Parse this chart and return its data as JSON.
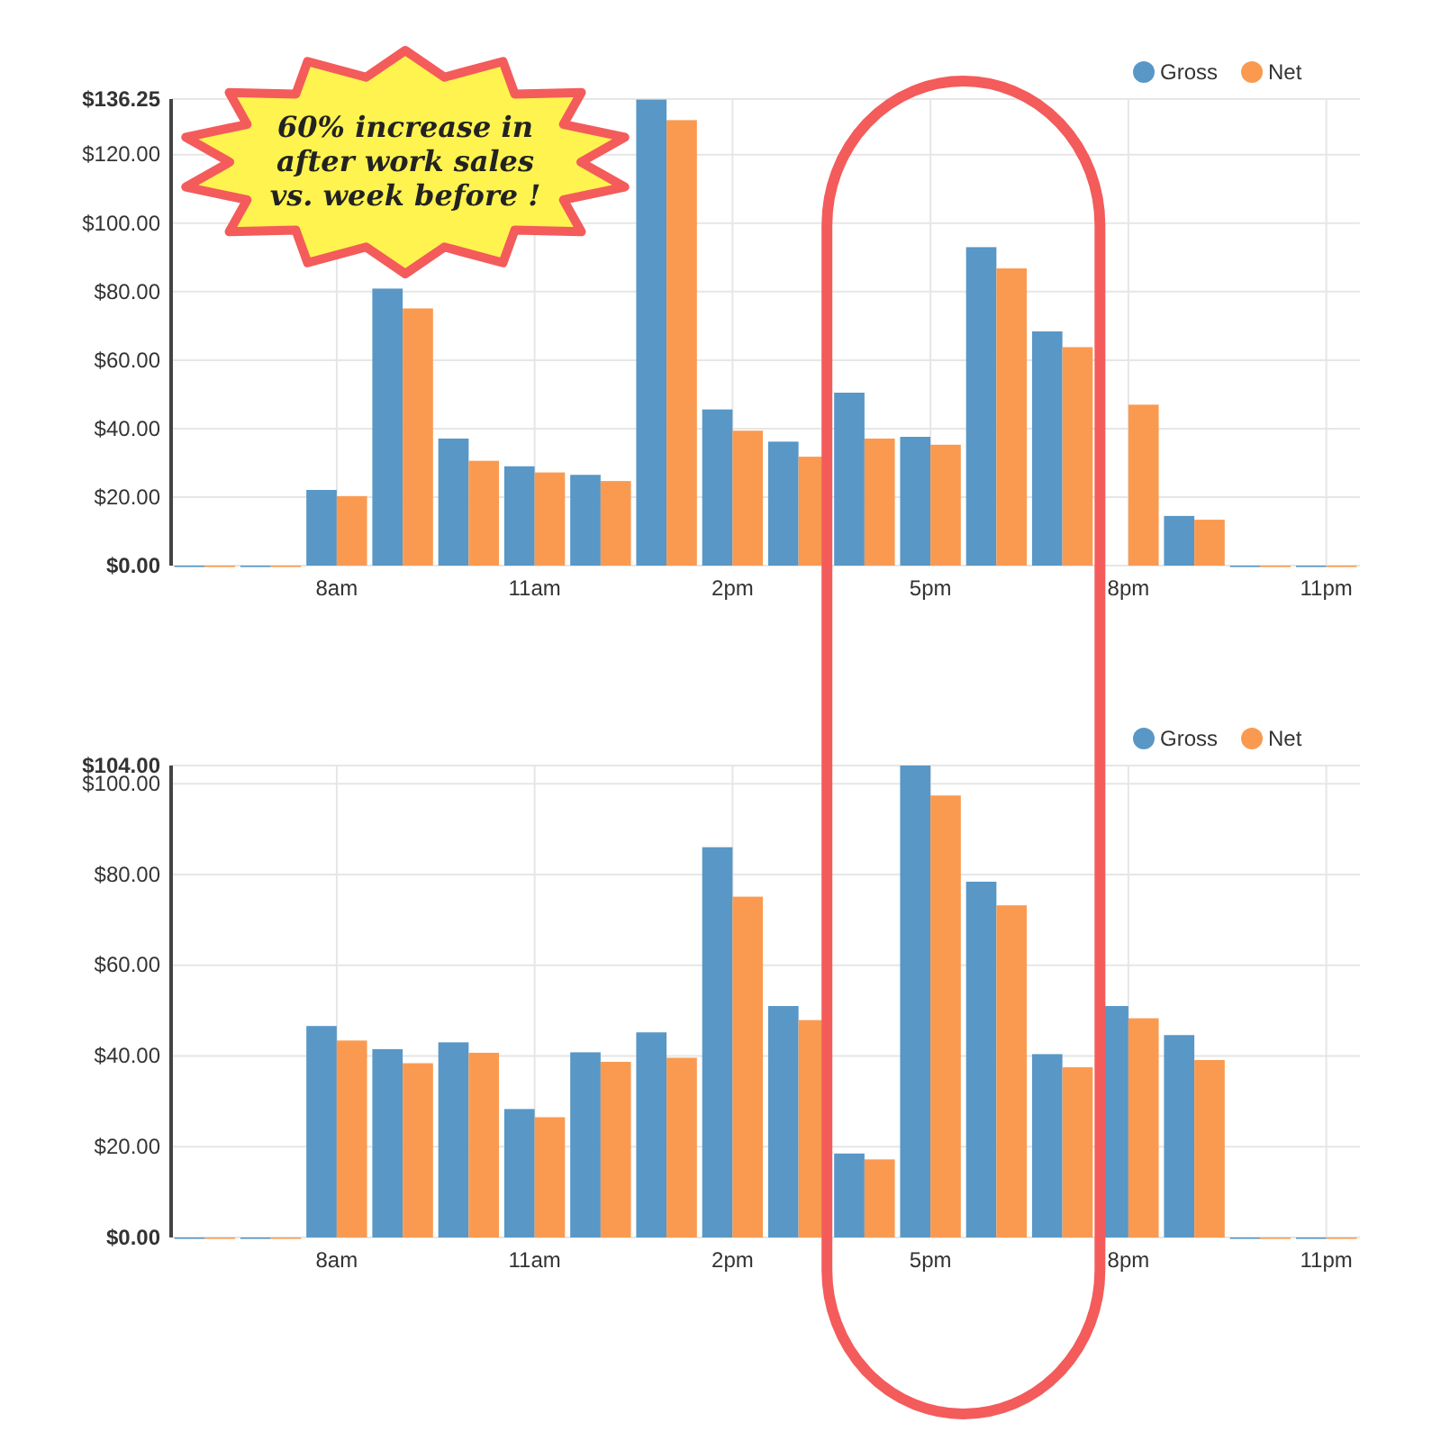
{
  "chart_data": [
    {
      "type": "bar",
      "categories": [
        null,
        null,
        "8am",
        null,
        null,
        "11am",
        null,
        null,
        "2pm",
        null,
        null,
        "5pm",
        null,
        null,
        "8pm",
        null,
        null,
        "11pm"
      ],
      "series": [
        {
          "name": "Gross",
          "color": "#5897c6",
          "values": [
            0,
            0,
            22.1,
            80.9,
            37.1,
            29.0,
            26.5,
            136.1,
            45.6,
            36.2,
            50.5,
            37.6,
            93.0,
            68.4,
            null,
            14.5,
            0,
            0
          ]
        },
        {
          "name": "Net",
          "color": "#fa9a50",
          "values": [
            0,
            0,
            20.3,
            75.1,
            30.6,
            27.2,
            24.7,
            130.1,
            39.4,
            31.8,
            37.1,
            35.3,
            86.8,
            63.8,
            47.0,
            13.4,
            0,
            0
          ]
        }
      ],
      "ylim": [
        0,
        136.25
      ],
      "yticks": [
        {
          "value": 0,
          "label": "$0.00"
        },
        {
          "value": 20,
          "label": "$20.00"
        },
        {
          "value": 40,
          "label": "$40.00"
        },
        {
          "value": 60,
          "label": "$60.00"
        },
        {
          "value": 80,
          "label": "$80.00"
        },
        {
          "value": 100,
          "label": "$100.00"
        },
        {
          "value": 120,
          "label": "$120.00"
        },
        {
          "value": 136.25,
          "label": "$136.25"
        }
      ],
      "grid": true,
      "legend": "top right",
      "annotations": [
        "60% increase in after work sales vs. week before !"
      ]
    },
    {
      "type": "bar",
      "categories": [
        null,
        null,
        "8am",
        null,
        null,
        "11am",
        null,
        null,
        "2pm",
        null,
        null,
        "5pm",
        null,
        null,
        "8pm",
        null,
        null,
        "11pm"
      ],
      "series": [
        {
          "name": "Gross",
          "color": "#5897c6",
          "values": [
            0,
            0,
            46.6,
            41.5,
            43.0,
            28.3,
            40.8,
            45.2,
            86.0,
            51.0,
            18.5,
            104.0,
            78.4,
            40.4,
            51.0,
            44.6,
            0,
            0
          ]
        },
        {
          "name": "Net",
          "color": "#fa9a50",
          "values": [
            0,
            0,
            43.4,
            38.4,
            40.7,
            26.5,
            38.7,
            39.6,
            75.1,
            47.9,
            17.2,
            97.4,
            73.2,
            37.5,
            48.3,
            39.1,
            0,
            0
          ]
        }
      ],
      "ylim": [
        0,
        104
      ],
      "yticks": [
        {
          "value": 0,
          "label": "$0.00"
        },
        {
          "value": 20,
          "label": "$20.00"
        },
        {
          "value": 40,
          "label": "$40.00"
        },
        {
          "value": 60,
          "label": "$60.00"
        },
        {
          "value": 80,
          "label": "$80.00"
        },
        {
          "value": 100,
          "label": "$100.00"
        },
        {
          "value": 104,
          "label": "$104.00"
        }
      ],
      "grid": true,
      "legend": "top right"
    }
  ]
}
